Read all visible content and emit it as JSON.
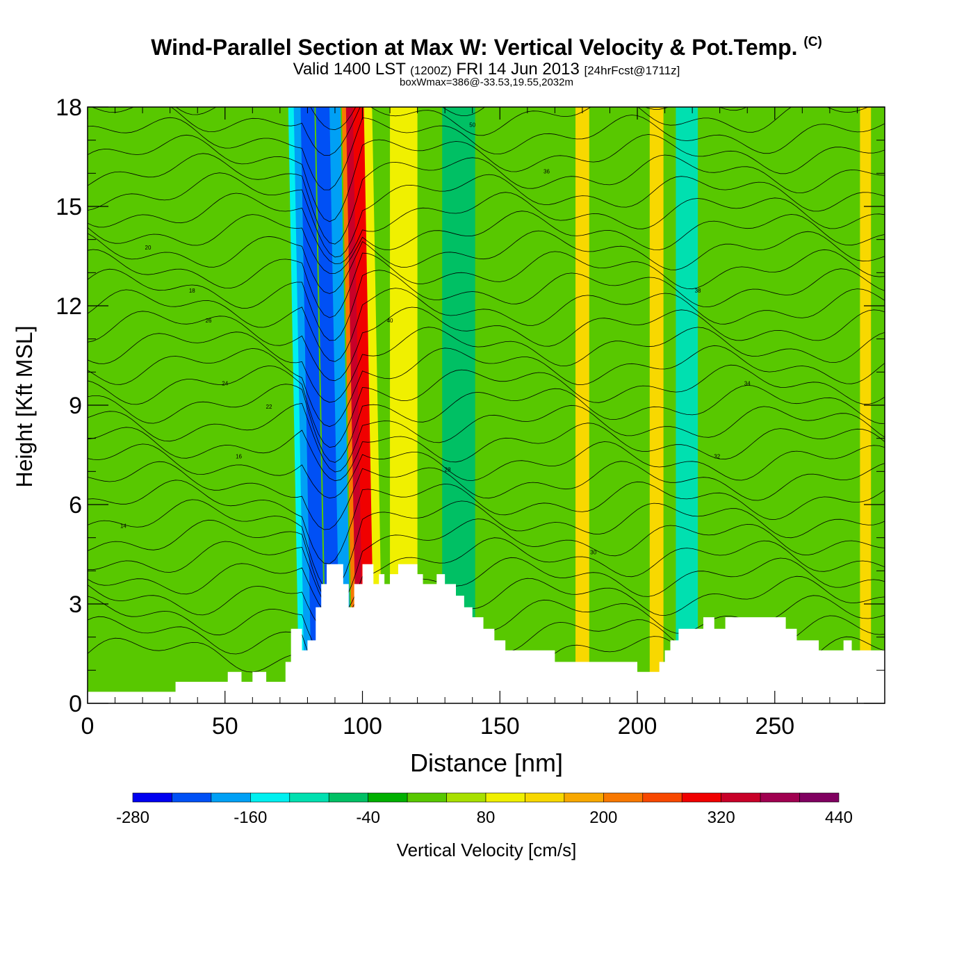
{
  "title": {
    "main": "Wind-Parallel Section at Max W: Vertical Velocity & Pot.Temp.",
    "copyright": "(C)",
    "valid_prefix": "Valid 1400 LST",
    "valid_z": "(1200Z)",
    "valid_date": "FRI 14 Jun 2013",
    "forecast": "[24hrFcst@1711z]",
    "box_note": "boxWmax=386@-33.53,19.55,2032m"
  },
  "chart_data": {
    "type": "heatmap",
    "title": "Wind-Parallel Section at Max W: Vertical Velocity & Pot.Temp.",
    "xlabel": "Distance [nm]",
    "ylabel": "Height [Kft MSL]",
    "xlim": [
      0,
      290
    ],
    "ylim": [
      0,
      18
    ],
    "x_ticks": [
      0,
      50,
      100,
      150,
      200,
      250
    ],
    "y_ticks": [
      0,
      3,
      6,
      9,
      12,
      15,
      18
    ],
    "colorbar": {
      "label": "Vertical Velocity [cm/s]",
      "tick_labels": [
        "-280",
        "-160",
        "-40",
        "80",
        "200",
        "320",
        "440"
      ],
      "levels": [
        -280,
        -240,
        -200,
        -160,
        -120,
        -80,
        -40,
        0,
        40,
        80,
        120,
        160,
        200,
        240,
        280,
        320,
        360,
        400,
        440
      ],
      "colors": [
        "#0000f0",
        "#0050f5",
        "#00a0f5",
        "#00f0f0",
        "#00e0b0",
        "#00c064",
        "#00b000",
        "#58c800",
        "#a8e000",
        "#f0f000",
        "#f8d800",
        "#f8a800",
        "#f87800",
        "#f84800",
        "#f00000",
        "#c80028",
        "#a00050",
        "#800060"
      ]
    },
    "terrain_kft": [
      [
        0,
        0.35
      ],
      [
        32,
        0.35
      ],
      [
        32,
        0.65
      ],
      [
        51,
        0.65
      ],
      [
        51,
        0.95
      ],
      [
        56,
        0.95
      ],
      [
        56,
        0.65
      ],
      [
        60,
        0.65
      ],
      [
        60,
        0.95
      ],
      [
        65,
        0.95
      ],
      [
        65,
        0.65
      ],
      [
        72,
        0.65
      ],
      [
        72,
        1.25
      ],
      [
        74,
        1.25
      ],
      [
        74,
        2.25
      ],
      [
        78,
        2.25
      ],
      [
        78,
        1.6
      ],
      [
        80,
        1.6
      ],
      [
        80,
        1.9
      ],
      [
        83,
        1.9
      ],
      [
        83,
        2.9
      ],
      [
        85,
        2.9
      ],
      [
        85,
        3.6
      ],
      [
        87,
        3.6
      ],
      [
        87,
        4.2
      ],
      [
        93,
        4.2
      ],
      [
        93,
        3.6
      ],
      [
        95,
        3.6
      ],
      [
        95,
        2.9
      ],
      [
        97,
        2.9
      ],
      [
        97,
        3.6
      ],
      [
        100,
        3.6
      ],
      [
        100,
        4.2
      ],
      [
        104,
        4.2
      ],
      [
        104,
        3.6
      ],
      [
        106,
        3.6
      ],
      [
        106,
        3.9
      ],
      [
        108,
        3.9
      ],
      [
        108,
        3.6
      ],
      [
        110,
        3.6
      ],
      [
        110,
        3.9
      ],
      [
        113,
        3.9
      ],
      [
        113,
        4.2
      ],
      [
        120,
        4.2
      ],
      [
        120,
        3.9
      ],
      [
        122,
        3.9
      ],
      [
        122,
        3.6
      ],
      [
        127,
        3.6
      ],
      [
        127,
        3.9
      ],
      [
        130,
        3.9
      ],
      [
        130,
        3.6
      ],
      [
        134,
        3.6
      ],
      [
        134,
        3.25
      ],
      [
        137,
        3.25
      ],
      [
        137,
        2.9
      ],
      [
        140,
        2.9
      ],
      [
        140,
        2.6
      ],
      [
        144,
        2.6
      ],
      [
        144,
        2.25
      ],
      [
        148,
        2.25
      ],
      [
        148,
        1.9
      ],
      [
        152,
        1.9
      ],
      [
        152,
        1.6
      ],
      [
        170,
        1.6
      ],
      [
        170,
        1.25
      ],
      [
        200,
        1.25
      ],
      [
        200,
        0.95
      ],
      [
        208,
        0.95
      ],
      [
        208,
        1.25
      ],
      [
        210,
        1.25
      ],
      [
        210,
        1.6
      ],
      [
        212,
        1.6
      ],
      [
        212,
        1.9
      ],
      [
        215,
        1.9
      ],
      [
        215,
        2.25
      ],
      [
        224,
        2.25
      ],
      [
        224,
        2.6
      ],
      [
        228,
        2.6
      ],
      [
        228,
        2.25
      ],
      [
        232,
        2.25
      ],
      [
        232,
        2.6
      ],
      [
        254,
        2.6
      ],
      [
        254,
        2.25
      ],
      [
        258,
        2.25
      ],
      [
        258,
        1.9
      ],
      [
        266,
        1.9
      ],
      [
        266,
        1.6
      ],
      [
        275,
        1.6
      ],
      [
        275,
        1.9
      ],
      [
        278,
        1.9
      ],
      [
        278,
        1.6
      ],
      [
        290,
        1.6
      ]
    ],
    "velocity_bands": [
      {
        "x": 77,
        "half_width": 2.0,
        "w": -160
      },
      {
        "x": 79,
        "half_width": 2.0,
        "w": -200
      },
      {
        "x": 82,
        "half_width": 2.5,
        "w": -240
      },
      {
        "x": 88,
        "half_width": 3.0,
        "w": -240
      },
      {
        "x": 92,
        "half_width": 2.0,
        "w": -200
      },
      {
        "x": 96,
        "half_width": 1.5,
        "w": 200
      },
      {
        "x": 98,
        "half_width": 2.0,
        "w": 320
      },
      {
        "x": 101,
        "half_width": 2.5,
        "w": 280
      },
      {
        "x": 104,
        "half_width": 1.5,
        "w": 80
      },
      {
        "x": 115,
        "half_width": 5.0,
        "w": 80
      },
      {
        "x": 135,
        "half_width": 6.0,
        "w": -80
      },
      {
        "x": 180,
        "half_width": 2.5,
        "w": 120
      },
      {
        "x": 207,
        "half_width": 2.5,
        "w": 120
      },
      {
        "x": 218,
        "half_width": 4.0,
        "w": -120
      },
      {
        "x": 283,
        "half_width": 2.0,
        "w": 120
      }
    ],
    "theta_contour_labels": [
      "14",
      "16",
      "18",
      "20",
      "22",
      "24",
      "26",
      "28",
      "30",
      "32",
      "34",
      "36",
      "38",
      "40",
      "50"
    ]
  }
}
